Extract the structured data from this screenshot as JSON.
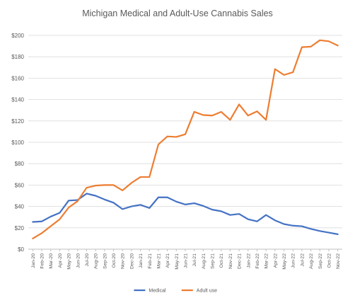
{
  "chart_data": {
    "type": "line",
    "title": "Michigan Medical and Adult-Use Cannabis Sales",
    "xlabel": "",
    "ylabel": "",
    "ylim": [
      0,
      200
    ],
    "yticks": [
      "$0",
      "$20",
      "$40",
      "$60",
      "$80",
      "$100",
      "$120",
      "$140",
      "$160",
      "$180",
      "$200"
    ],
    "grid": true,
    "legend_position": "bottom",
    "categories": [
      "Jan-20",
      "Feb-20",
      "Mar-20",
      "Apr-20",
      "May-20",
      "Jun-20",
      "Jul-20",
      "Aug-20",
      "Sep-20",
      "Oct-20",
      "Nov-20",
      "Dec-20",
      "Jan-21",
      "Feb-21",
      "Mar-21",
      "Apr-21",
      "May-21",
      "Jun-21",
      "Jul-21",
      "Aug-21",
      "Sep-21",
      "Oct-21",
      "Nov-21",
      "Dec-21",
      "Jan-22",
      "Feb-22",
      "Mar-22",
      "Apr-22",
      "May-22",
      "Jun-22",
      "Jul-22",
      "Aug-22",
      "Sep-22",
      "Oct-22",
      "Nov-22"
    ],
    "series": [
      {
        "name": "Medical",
        "color": "#4472c4",
        "values": [
          25.5,
          26,
          30.5,
          34,
          45.5,
          46,
          52,
          50,
          46.5,
          43.5,
          37.5,
          40,
          41.5,
          38.5,
          48.5,
          48.5,
          44.5,
          41.8,
          43,
          40.5,
          37,
          35.5,
          32,
          33,
          28,
          26,
          32,
          27,
          23.5,
          22,
          21.5,
          19,
          17,
          15.5,
          14
        ]
      },
      {
        "name": "Adult use",
        "color": "#ed7d31",
        "values": [
          10,
          15,
          21.5,
          28,
          39,
          45,
          57.5,
          59.5,
          60,
          60,
          55,
          62,
          67.5,
          67.5,
          98,
          105.5,
          105,
          107.5,
          128.5,
          125.5,
          125,
          128.5,
          121,
          135.5,
          125,
          129,
          121,
          168.5,
          163,
          165.5,
          189,
          189.5,
          195.5,
          194.5,
          190.5
        ]
      }
    ]
  }
}
